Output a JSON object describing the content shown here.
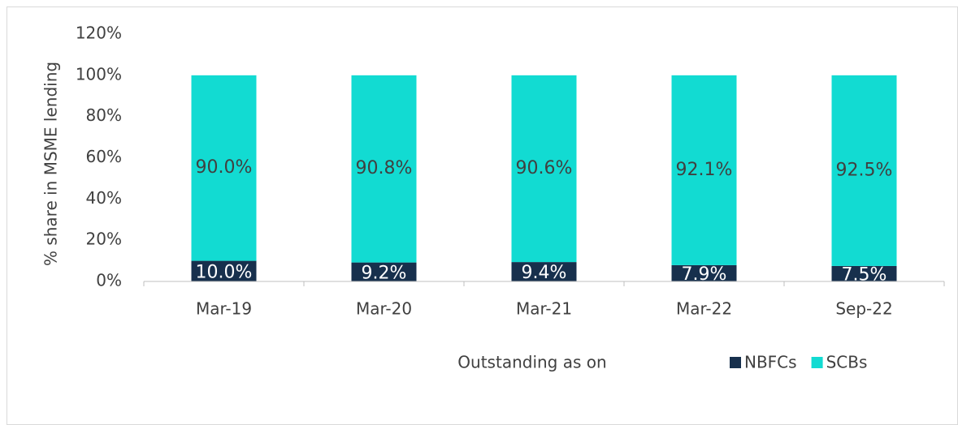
{
  "chart_data": {
    "type": "stacked_bar",
    "x_label": "Outstanding as on",
    "y_label": "% share in MSME lending",
    "categories": [
      "Mar-19",
      "Mar-20",
      "Mar-21",
      "Mar-22",
      "Sep-22"
    ],
    "series": [
      {
        "name": "NBFCs",
        "color": "#17304d",
        "label_color": "#ffffff",
        "values": [
          10.0,
          9.2,
          9.4,
          7.9,
          7.5
        ],
        "value_labels": [
          "10.0%",
          "9.2%",
          "9.4%",
          "7.9%",
          "7.5%"
        ]
      },
      {
        "name": "SCBs",
        "color": "#12dbd2",
        "label_color": "#404040",
        "values": [
          90.0,
          90.8,
          90.6,
          92.1,
          92.5
        ],
        "value_labels": [
          "90.0%",
          "90.8%",
          "90.6%",
          "92.1%",
          "92.5%"
        ]
      }
    ],
    "ylim": [
      0,
      120
    ],
    "yticks": [
      {
        "value": 0,
        "label": "0%"
      },
      {
        "value": 20,
        "label": "20%"
      },
      {
        "value": 40,
        "label": "40%"
      },
      {
        "value": 60,
        "label": "60%"
      },
      {
        "value": 80,
        "label": "80%"
      },
      {
        "value": 100,
        "label": "100%"
      },
      {
        "value": 120,
        "label": "120%"
      }
    ],
    "grid": false,
    "legend": "bottom"
  }
}
